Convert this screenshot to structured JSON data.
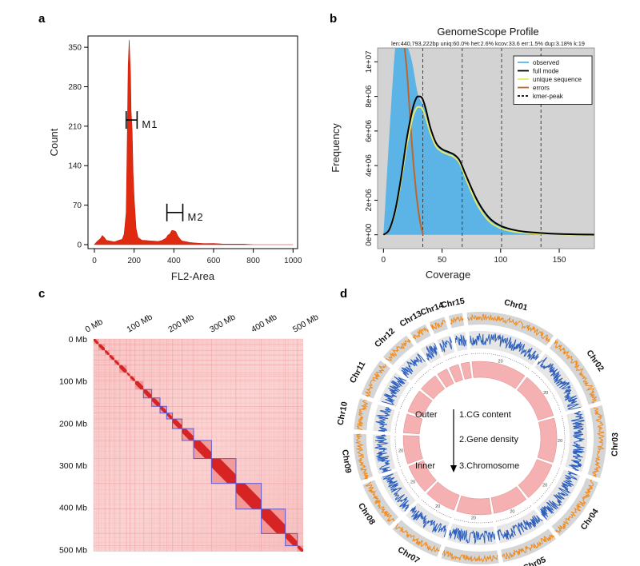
{
  "panels": {
    "a": "a",
    "b": "b",
    "c": "c",
    "d": "d"
  },
  "chart_data": [
    {
      "panel": "a",
      "type": "area",
      "xlabel": "FL2-Area",
      "ylabel": "Count",
      "xlim": [
        0,
        1023
      ],
      "ylim": [
        0,
        370
      ],
      "x_ticks": [
        0,
        200,
        400,
        600,
        800,
        1000
      ],
      "y_ticks": [
        0,
        70,
        140,
        210,
        280,
        350
      ],
      "color": "#e02a10",
      "x": [
        0,
        10,
        20,
        30,
        40,
        50,
        60,
        80,
        100,
        120,
        140,
        150,
        160,
        165,
        170,
        175,
        178,
        182,
        185,
        190,
        195,
        200,
        210,
        220,
        240,
        260,
        280,
        300,
        320,
        340,
        360,
        370,
        380,
        390,
        400,
        410,
        420,
        430,
        440,
        460,
        480,
        500,
        550,
        600,
        650,
        700,
        750,
        800,
        850,
        900,
        1000
      ],
      "values": [
        0,
        4,
        8,
        10,
        17,
        12,
        8,
        6,
        5,
        7,
        10,
        18,
        60,
        180,
        320,
        360,
        340,
        300,
        240,
        200,
        130,
        80,
        30,
        12,
        8,
        7,
        7,
        6,
        6,
        7,
        12,
        16,
        20,
        24,
        26,
        22,
        16,
        10,
        7,
        5,
        4,
        3,
        2,
        2,
        1,
        1,
        1,
        0,
        0,
        0,
        0
      ],
      "annotations": [
        {
          "label": "M1",
          "x_from": 160,
          "x_to": 215,
          "y": 221
        },
        {
          "label": "M2",
          "x_from": 365,
          "x_to": 445,
          "y": 57
        }
      ]
    },
    {
      "panel": "b",
      "type": "line",
      "title": "GenomeScope Profile",
      "subtitle": "len:440,793,222bp uniq:60.0% het:2.6% kcov:33.6 err:1.5% dup:3.18% k:19",
      "xlabel": "Coverage",
      "ylabel": "Frequency",
      "xlim": [
        -5,
        180
      ],
      "ylim": [
        -800000,
        10800000
      ],
      "x_ticks": [
        0,
        50,
        100,
        150
      ],
      "y_tick_values": [
        0,
        2000000,
        4000000,
        6000000,
        8000000,
        10000000
      ],
      "y_tick_labels": [
        "0e+00",
        "2e+06",
        "4e+06",
        "6e+06",
        "8e+06",
        "1e+07"
      ],
      "kmer_peaks": [
        33.6,
        67.2,
        100.8,
        134.4
      ],
      "legend": [
        "observed",
        "full mode",
        "unique sequence",
        "errors",
        "kmer-peak"
      ],
      "legend_position": "top-right",
      "colors": {
        "observed": "#5bb4e5",
        "full_mode": "#000000",
        "unique": "#e8e86a",
        "errors": "#c0642a",
        "background": "#d3d3d3"
      },
      "series": [
        {
          "name": "observed",
          "x": [
            0,
            10,
            15,
            20,
            22,
            25,
            28,
            30,
            33,
            36,
            40,
            45,
            50,
            55,
            60,
            65,
            70,
            80,
            90,
            100,
            110,
            120,
            140,
            160,
            180
          ],
          "values": [
            0,
            10800000,
            10800000,
            10800000,
            10600000,
            9800000,
            8600000,
            8000000,
            7600000,
            7200000,
            6200000,
            5300000,
            4950000,
            4800000,
            4650000,
            4300000,
            3500000,
            2000000,
            1000000,
            520000,
            300000,
            180000,
            80000,
            30000,
            10000
          ]
        },
        {
          "name": "full mode",
          "x": [
            0,
            5,
            10,
            15,
            20,
            25,
            28,
            30,
            33,
            36,
            40,
            45,
            50,
            55,
            60,
            65,
            70,
            80,
            90,
            100,
            110,
            120,
            140,
            160,
            180
          ],
          "values": [
            0,
            300000,
            1400000,
            3300000,
            5600000,
            7300000,
            7900000,
            8000000,
            7900000,
            7300000,
            6200000,
            5300000,
            4950000,
            4800000,
            4650000,
            4300000,
            3500000,
            2000000,
            1000000,
            520000,
            300000,
            180000,
            80000,
            30000,
            10000
          ]
        },
        {
          "name": "unique sequence",
          "x": [
            0,
            5,
            10,
            15,
            20,
            25,
            28,
            30,
            33,
            36,
            40,
            45,
            50,
            55,
            60,
            65,
            70,
            80,
            90,
            100,
            110,
            120,
            140,
            160,
            180
          ],
          "values": [
            0,
            280000,
            1300000,
            3100000,
            5200000,
            6800000,
            7300000,
            7400000,
            7300000,
            6800000,
            5900000,
            5100000,
            4800000,
            4650000,
            4500000,
            4150000,
            3300000,
            1750000,
            800000,
            380000,
            200000,
            110000,
            40000,
            10000,
            0
          ]
        },
        {
          "name": "errors",
          "x": [
            18,
            20,
            22,
            24,
            26,
            28,
            30,
            32,
            34
          ],
          "values": [
            10800000,
            9500000,
            7500000,
            5500000,
            3800000,
            2400000,
            1300000,
            500000,
            0
          ]
        }
      ]
    },
    {
      "panel": "c",
      "type": "heatmap",
      "x_ticks": [
        "0 Mb",
        "100 Mb",
        "200 Mb",
        "300 Mb",
        "400 Mb",
        "500 Mb"
      ],
      "y_ticks": [
        "0 Mb",
        "100 Mb",
        "200 Mb",
        "300 Mb",
        "400 Mb",
        "500 Mb"
      ],
      "range_mb": [
        0,
        505
      ],
      "color": "#d41e1e",
      "diagonal_blocks_mb": [
        [
          0,
          12
        ],
        [
          12,
          27
        ],
        [
          27,
          38
        ],
        [
          38,
          50
        ],
        [
          50,
          62
        ],
        [
          62,
          80
        ],
        [
          80,
          88
        ],
        [
          88,
          100
        ],
        [
          100,
          120
        ],
        [
          120,
          140
        ],
        [
          140,
          160
        ],
        [
          160,
          176
        ],
        [
          176,
          190
        ],
        [
          190,
          213
        ],
        [
          213,
          241
        ],
        [
          241,
          284
        ],
        [
          284,
          343
        ],
        [
          343,
          404
        ],
        [
          404,
          462
        ],
        [
          462,
          491
        ],
        [
          491,
          505
        ]
      ],
      "outlined_blocks_mb": [
        [
          120,
          140
        ],
        [
          140,
          160
        ],
        [
          160,
          176
        ],
        [
          176,
          190
        ],
        [
          190,
          213
        ],
        [
          213,
          241
        ],
        [
          241,
          284
        ],
        [
          284,
          343
        ],
        [
          343,
          404
        ],
        [
          404,
          462
        ],
        [
          462,
          491
        ]
      ]
    },
    {
      "panel": "d",
      "type": "circos",
      "chromosomes": [
        "Chr01",
        "Chr02",
        "Chr03",
        "Chr04",
        "Chr05",
        "Chr06",
        "Chr07",
        "Chr08",
        "Chr09",
        "Chr10",
        "Chr11",
        "Chr12",
        "Chr13",
        "Chr14",
        "Chr15"
      ],
      "chromosome_sizes": [
        52,
        44,
        42,
        38,
        33,
        33,
        30,
        28,
        27,
        18,
        22,
        18,
        10,
        9,
        8
      ],
      "scale_label": "20",
      "colors": {
        "gc": "#f28a1a",
        "gene": "#2d5fbd",
        "chromosome": "#f5b1b1",
        "band": "#d5d5d5"
      },
      "legend": {
        "outer": "Outer",
        "inner": "Inner",
        "tracks": [
          "1.CG content",
          "2.Gene density",
          "3.Chromosome"
        ]
      }
    }
  ]
}
